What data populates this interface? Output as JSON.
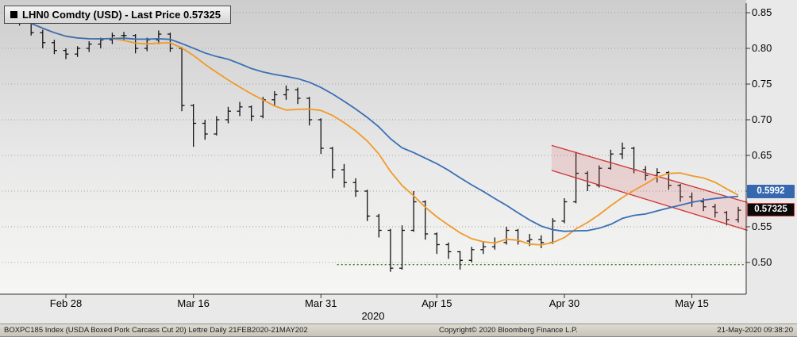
{
  "title": "LHN0 Comdty (USD) - Last Price 0.57325",
  "chart_data": {
    "type": "ohlc",
    "title": "LHN0 Comdty (USD) - Last Price 0.57325",
    "xlabel": "",
    "ylabel": "",
    "grid": true,
    "ylim": [
      0.4556,
      0.8678
    ],
    "y_ticks": [
      "0.85",
      "0.80",
      "0.75",
      "0.70",
      "0.65",
      "0.60",
      "0.55",
      "0.50"
    ],
    "y_tick_values": [
      0.85,
      0.8,
      0.75,
      0.7,
      0.65,
      0.6,
      0.55,
      0.5
    ],
    "x_ticks": [
      {
        "label": "Feb 28",
        "index": 5
      },
      {
        "label": "Mar 16",
        "index": 16
      },
      {
        "label": "Mar 31",
        "index": 27
      },
      {
        "label": "Apr 15",
        "index": 37
      },
      {
        "label": "Apr 30",
        "index": 48
      },
      {
        "label": "May 15",
        "index": 59
      }
    ],
    "year_label": "2020",
    "bar_color": "#111111",
    "dates": [
      "2020-02-21",
      "2020-02-24",
      "2020-02-25",
      "2020-02-26",
      "2020-02-27",
      "2020-02-28",
      "2020-03-02",
      "2020-03-03",
      "2020-03-04",
      "2020-03-05",
      "2020-03-06",
      "2020-03-09",
      "2020-03-10",
      "2020-03-11",
      "2020-03-12",
      "2020-03-13",
      "2020-03-16",
      "2020-03-17",
      "2020-03-18",
      "2020-03-19",
      "2020-03-20",
      "2020-03-23",
      "2020-03-24",
      "2020-03-25",
      "2020-03-26",
      "2020-03-27",
      "2020-03-30",
      "2020-03-31",
      "2020-04-01",
      "2020-04-02",
      "2020-04-03",
      "2020-04-06",
      "2020-04-07",
      "2020-04-08",
      "2020-04-09",
      "2020-04-13",
      "2020-04-14",
      "2020-04-15",
      "2020-04-16",
      "2020-04-17",
      "2020-04-20",
      "2020-04-21",
      "2020-04-22",
      "2020-04-23",
      "2020-04-24",
      "2020-04-27",
      "2020-04-28",
      "2020-04-29",
      "2020-04-30",
      "2020-05-01",
      "2020-05-04",
      "2020-05-05",
      "2020-05-06",
      "2020-05-07",
      "2020-05-08",
      "2020-05-11",
      "2020-05-12",
      "2020-05-13",
      "2020-05-14",
      "2020-05-15",
      "2020-05-18",
      "2020-05-19",
      "2020-05-20",
      "2020-05-21"
    ],
    "open": [
      0.852,
      0.845,
      0.838,
      0.822,
      0.808,
      0.797,
      0.792,
      0.8,
      0.806,
      0.812,
      0.818,
      0.818,
      0.8,
      0.812,
      0.82,
      0.8,
      0.72,
      0.695,
      0.68,
      0.7,
      0.712,
      0.718,
      0.705,
      0.728,
      0.735,
      0.742,
      0.73,
      0.7,
      0.66,
      0.63,
      0.612,
      0.6,
      0.565,
      0.545,
      0.492,
      0.545,
      0.585,
      0.54,
      0.525,
      0.515,
      0.503,
      0.518,
      0.522,
      0.528,
      0.545,
      0.53,
      0.532,
      0.528,
      0.558,
      0.585,
      0.625,
      0.608,
      0.632,
      0.652,
      0.66,
      0.63,
      0.622,
      0.626,
      0.608,
      0.592,
      0.585,
      0.578,
      0.57,
      0.56
    ],
    "high": [
      0.855,
      0.852,
      0.84,
      0.826,
      0.812,
      0.8,
      0.803,
      0.81,
      0.815,
      0.822,
      0.823,
      0.82,
      0.815,
      0.825,
      0.822,
      0.802,
      0.722,
      0.7,
      0.705,
      0.718,
      0.725,
      0.72,
      0.732,
      0.74,
      0.748,
      0.745,
      0.732,
      0.702,
      0.662,
      0.638,
      0.618,
      0.602,
      0.568,
      0.547,
      0.552,
      0.6,
      0.587,
      0.542,
      0.528,
      0.516,
      0.522,
      0.53,
      0.535,
      0.55,
      0.547,
      0.54,
      0.538,
      0.562,
      0.59,
      0.655,
      0.628,
      0.636,
      0.658,
      0.668,
      0.662,
      0.635,
      0.632,
      0.628,
      0.61,
      0.598,
      0.59,
      0.582,
      0.572,
      0.578
    ],
    "low": [
      0.838,
      0.832,
      0.818,
      0.8,
      0.792,
      0.785,
      0.788,
      0.795,
      0.8,
      0.806,
      0.81,
      0.793,
      0.796,
      0.806,
      0.795,
      0.712,
      0.662,
      0.672,
      0.678,
      0.695,
      0.705,
      0.698,
      0.702,
      0.72,
      0.728,
      0.722,
      0.692,
      0.652,
      0.618,
      0.605,
      0.592,
      0.558,
      0.535,
      0.487,
      0.49,
      0.543,
      0.532,
      0.512,
      0.505,
      0.49,
      0.5,
      0.512,
      0.518,
      0.525,
      0.525,
      0.523,
      0.52,
      0.526,
      0.555,
      0.583,
      0.6,
      0.605,
      0.63,
      0.645,
      0.625,
      0.615,
      0.612,
      0.602,
      0.585,
      0.578,
      0.572,
      0.563,
      0.552,
      0.556
    ],
    "close": [
      0.845,
      0.838,
      0.822,
      0.808,
      0.797,
      0.792,
      0.8,
      0.806,
      0.812,
      0.818,
      0.818,
      0.8,
      0.812,
      0.82,
      0.8,
      0.72,
      0.695,
      0.68,
      0.7,
      0.712,
      0.718,
      0.705,
      0.728,
      0.735,
      0.742,
      0.73,
      0.7,
      0.66,
      0.63,
      0.612,
      0.6,
      0.565,
      0.545,
      0.492,
      0.545,
      0.585,
      0.54,
      0.525,
      0.515,
      0.503,
      0.518,
      0.522,
      0.528,
      0.545,
      0.53,
      0.532,
      0.528,
      0.558,
      0.585,
      0.625,
      0.608,
      0.632,
      0.652,
      0.66,
      0.63,
      0.622,
      0.626,
      0.608,
      0.592,
      0.585,
      0.578,
      0.57,
      0.56,
      0.57325
    ],
    "overlays": {
      "ma_short": {
        "name": "short moving average",
        "window": 10,
        "color": "#f09a2a"
      },
      "ma_long": {
        "name": "long moving average",
        "window": 20,
        "color": "#3a6fb5",
        "end_value": 0.5992
      }
    },
    "support_line": {
      "value": 0.497,
      "color": "#3f7a28",
      "style": "dotted",
      "start_index": 28.4
    },
    "channel": {
      "start_index": 46.9,
      "end_index": 63.8,
      "top_start": 0.664,
      "top_end": 0.584,
      "bottom_start": 0.629,
      "bottom_end": 0.545,
      "line_color": "#cf3333",
      "fill_color": "#e06060",
      "fill_opacity": 0.18
    },
    "badges": [
      {
        "label": "0.5992",
        "value": 0.5992,
        "bg": "#3668b0",
        "text_color": "#ffffff",
        "border": "#3668b0"
      },
      {
        "label": "0.57325",
        "value": 0.57325,
        "bg": "#0a0a0a",
        "text_color": "#ffffff",
        "border": "#d23b3b"
      }
    ],
    "last_price": 0.57325,
    "security": "LHN0 Comdty"
  },
  "footer": {
    "left": "BOXPC185 Index (USDA Boxed Pork Carcass Cut 20) Lettre  Daily 21FEB2020-21MAY202",
    "center": "Copyright© 2020 Bloomberg Finance L.P.",
    "right": "21-May-2020 09:38:20"
  }
}
